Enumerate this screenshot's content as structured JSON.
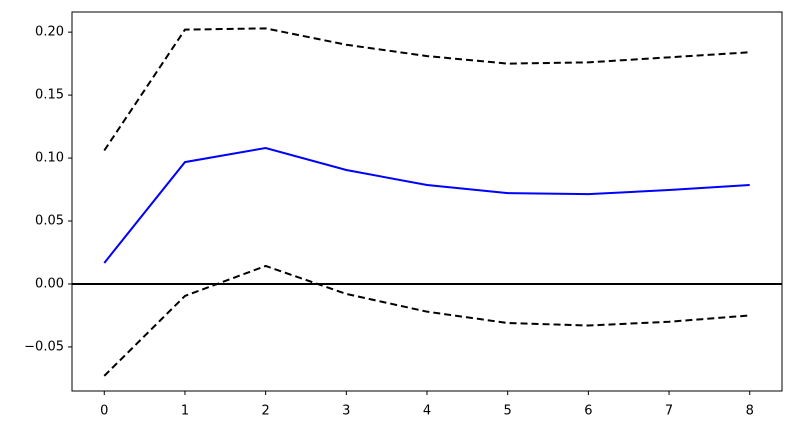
{
  "chart_data": {
    "type": "line",
    "x": [
      0,
      1,
      2,
      3,
      4,
      5,
      6,
      7,
      8
    ],
    "series": [
      {
        "color": "#0000ff",
        "dashed": false,
        "values": [
          0.0167,
          0.0968,
          0.108,
          0.0905,
          0.0786,
          0.0722,
          0.0714,
          0.0746,
          0.0786
        ]
      },
      {
        "color": "#000000",
        "dashed": true,
        "values": [
          0.106,
          0.202,
          0.203,
          0.19,
          0.181,
          0.175,
          0.176,
          0.18,
          0.184
        ]
      },
      {
        "color": "#000000",
        "dashed": true,
        "values": [
          -0.073,
          -0.0095,
          0.0143,
          -0.0079,
          -0.022,
          -0.031,
          -0.033,
          -0.03,
          -0.025
        ]
      }
    ],
    "hline": {
      "value": 0,
      "color": "#000000"
    },
    "xlim": [
      -0.4,
      8.4
    ],
    "ylim": [
      -0.085,
      0.216
    ],
    "xticks": [
      0,
      1,
      2,
      3,
      4,
      5,
      6,
      7,
      8
    ],
    "yticks": [
      {
        "value": -0.05,
        "label": "−0.05"
      },
      {
        "value": 0,
        "label": "0.00"
      },
      0.05,
      {
        "value": 0.1,
        "label": "0.10"
      },
      0.15,
      {
        "value": 0.2,
        "label": "0.20"
      }
    ],
    "grid": false
  }
}
